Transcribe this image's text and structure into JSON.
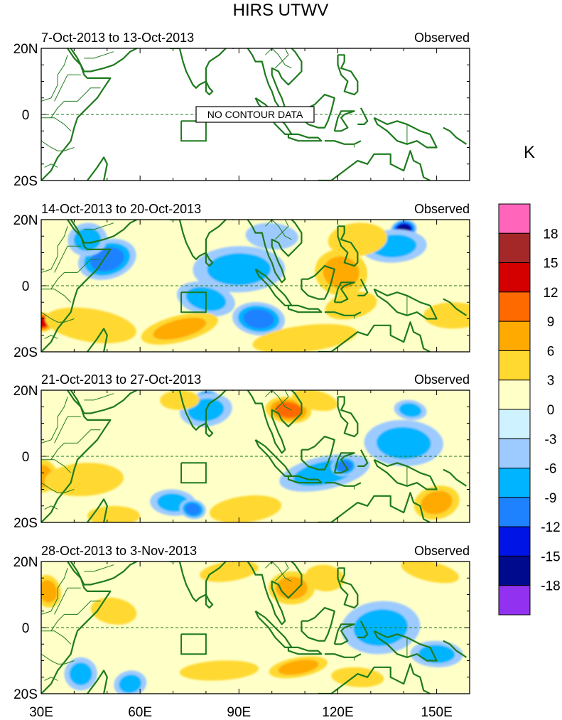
{
  "chart_data": {
    "type": "heatmap",
    "title": "HIRS UTWV",
    "units_label": "K",
    "x_axis": {
      "range": [
        30,
        160
      ],
      "ticks": [
        30,
        60,
        90,
        120,
        150
      ],
      "tick_labels": [
        "30E",
        "60E",
        "90E",
        "120E",
        "150E"
      ]
    },
    "y_axis": {
      "range": [
        -20,
        20
      ],
      "ticks": [
        20,
        0,
        -20
      ],
      "tick_labels": [
        "20N",
        "0",
        "20S"
      ]
    },
    "colorbar": {
      "levels": [
        18,
        15,
        12,
        9,
        6,
        3,
        0,
        -3,
        -6,
        -9,
        -12,
        -15,
        -18
      ],
      "level_labels": [
        "18",
        "15",
        "12",
        "9",
        "6",
        "3",
        "0",
        "-3",
        "-6",
        "-9",
        "-12",
        "-15",
        "-18"
      ],
      "colors": [
        "#ff66bb",
        "#a52828",
        "#d40000",
        "#ff6a00",
        "#ffaa00",
        "#ffd930",
        "#ffffc8",
        "#cef2ff",
        "#9ecbff",
        "#00b4ff",
        "#1e82ff",
        "#0014e6",
        "#000a8c",
        "#9232f0"
      ]
    },
    "coast_color": "#1e7a1e",
    "panels": [
      {
        "period": "7-Oct-2013 to 13-Oct-2013",
        "label": "Observed",
        "no_data": true,
        "no_data_text": "NO CONTOUR DATA",
        "anomaly_blobs": []
      },
      {
        "period": "14-Oct-2013 to 20-Oct-2013",
        "label": "Observed",
        "no_data": false,
        "anomaly_blobs": [
          {
            "lon": 50,
            "lat": 8,
            "value": -8,
            "sx": 9,
            "sy": 6
          },
          {
            "lon": 44,
            "lat": 14,
            "value": -4,
            "sx": 6,
            "sy": 5
          },
          {
            "lon": 90,
            "lat": 5,
            "value": -5,
            "sx": 14,
            "sy": 7
          },
          {
            "lon": 96,
            "lat": -10,
            "value": -7,
            "sx": 8,
            "sy": 5
          },
          {
            "lon": 80,
            "lat": -4,
            "value": -4,
            "sx": 9,
            "sy": 5
          },
          {
            "lon": 140,
            "lat": 17,
            "value": -14,
            "sx": 4,
            "sy": 3
          },
          {
            "lon": 137,
            "lat": 12,
            "value": -6,
            "sx": 10,
            "sy": 5
          },
          {
            "lon": 100,
            "lat": 15,
            "value": -3,
            "sx": 8,
            "sy": 4
          },
          {
            "lon": 121,
            "lat": 4,
            "value": 8,
            "sx": 8,
            "sy": 7
          },
          {
            "lon": 124,
            "lat": -6,
            "value": 5,
            "sx": 8,
            "sy": 4
          },
          {
            "lon": 126,
            "lat": 14,
            "value": 4,
            "sx": 9,
            "sy": 5
          },
          {
            "lon": 30,
            "lat": -11,
            "value": 13,
            "sx": 4,
            "sy": 3
          },
          {
            "lon": 45,
            "lat": -12,
            "value": 5,
            "sx": 14,
            "sy": 5
          },
          {
            "lon": 72,
            "lat": -13,
            "value": 6,
            "sx": 12,
            "sy": 4
          },
          {
            "lon": 110,
            "lat": -16,
            "value": 5,
            "sx": 16,
            "sy": 4
          },
          {
            "lon": 155,
            "lat": -9,
            "value": 4,
            "sx": 9,
            "sy": 4
          },
          {
            "lon": 66,
            "lat": 6,
            "value": 2,
            "sx": 9,
            "sy": 5
          }
        ]
      },
      {
        "period": "21-Oct-2013 to 27-Oct-2013",
        "label": "Observed",
        "no_data": false,
        "anomaly_blobs": [
          {
            "lon": 80,
            "lat": 17,
            "value": -15,
            "sx": 4,
            "sy": 3
          },
          {
            "lon": 80,
            "lat": 14,
            "value": -5,
            "sx": 8,
            "sy": 5
          },
          {
            "lon": 72,
            "lat": 17,
            "value": 5,
            "sx": 6,
            "sy": 3
          },
          {
            "lon": 105,
            "lat": 14,
            "value": 9,
            "sx": 7,
            "sy": 4
          },
          {
            "lon": 113,
            "lat": 17,
            "value": 4,
            "sx": 7,
            "sy": 3
          },
          {
            "lon": 30,
            "lat": -6,
            "value": 8,
            "sx": 5,
            "sy": 5
          },
          {
            "lon": 43,
            "lat": -7,
            "value": 5,
            "sx": 12,
            "sy": 5
          },
          {
            "lon": 70,
            "lat": -14,
            "value": -5,
            "sx": 7,
            "sy": 4
          },
          {
            "lon": 76,
            "lat": -16,
            "value": -8,
            "sx": 4,
            "sy": 3
          },
          {
            "lon": 116,
            "lat": -5,
            "value": -5,
            "sx": 14,
            "sy": 5
          },
          {
            "lon": 122,
            "lat": -3,
            "value": -7,
            "sx": 4,
            "sy": 3
          },
          {
            "lon": 140,
            "lat": 4,
            "value": -4,
            "sx": 12,
            "sy": 7
          },
          {
            "lon": 142,
            "lat": 14,
            "value": -5,
            "sx": 5,
            "sy": 3
          },
          {
            "lon": 150,
            "lat": -14,
            "value": 6,
            "sx": 7,
            "sy": 5
          },
          {
            "lon": 92,
            "lat": -16,
            "value": 4,
            "sx": 11,
            "sy": 4
          },
          {
            "lon": 52,
            "lat": -18,
            "value": 3,
            "sx": 8,
            "sy": 3
          },
          {
            "lon": 57,
            "lat": 12,
            "value": 2,
            "sx": 9,
            "sy": 5
          }
        ]
      },
      {
        "period": "28-Oct-2013 to 3-Nov-2013",
        "label": "Observed",
        "no_data": false,
        "anomaly_blobs": [
          {
            "lon": 32,
            "lat": 11,
            "value": 6,
            "sx": 4,
            "sy": 5
          },
          {
            "lon": 87,
            "lat": 17,
            "value": 4,
            "sx": 9,
            "sy": 3
          },
          {
            "lon": 106,
            "lat": 12,
            "value": 7,
            "sx": 7,
            "sy": 5
          },
          {
            "lon": 116,
            "lat": 15,
            "value": 4,
            "sx": 6,
            "sy": 4
          },
          {
            "lon": 148,
            "lat": 17,
            "value": 4,
            "sx": 9,
            "sy": 3
          },
          {
            "lon": 108,
            "lat": -12,
            "value": 8,
            "sx": 9,
            "sy": 3
          },
          {
            "lon": 84,
            "lat": -13,
            "value": 4,
            "sx": 12,
            "sy": 3
          },
          {
            "lon": 126,
            "lat": -15,
            "value": 3,
            "sx": 8,
            "sy": 3
          },
          {
            "lon": 42,
            "lat": -14,
            "value": -6,
            "sx": 5,
            "sy": 5
          },
          {
            "lon": 57,
            "lat": -17,
            "value": -5,
            "sx": 5,
            "sy": 4
          },
          {
            "lon": 133,
            "lat": 0,
            "value": -5,
            "sx": 12,
            "sy": 8
          },
          {
            "lon": 150,
            "lat": -8,
            "value": -4,
            "sx": 8,
            "sy": 4
          },
          {
            "lon": 52,
            "lat": 5,
            "value": 3,
            "sx": 7,
            "sy": 4
          },
          {
            "lon": 70,
            "lat": -2,
            "value": 2,
            "sx": 8,
            "sy": 4
          }
        ]
      }
    ]
  }
}
